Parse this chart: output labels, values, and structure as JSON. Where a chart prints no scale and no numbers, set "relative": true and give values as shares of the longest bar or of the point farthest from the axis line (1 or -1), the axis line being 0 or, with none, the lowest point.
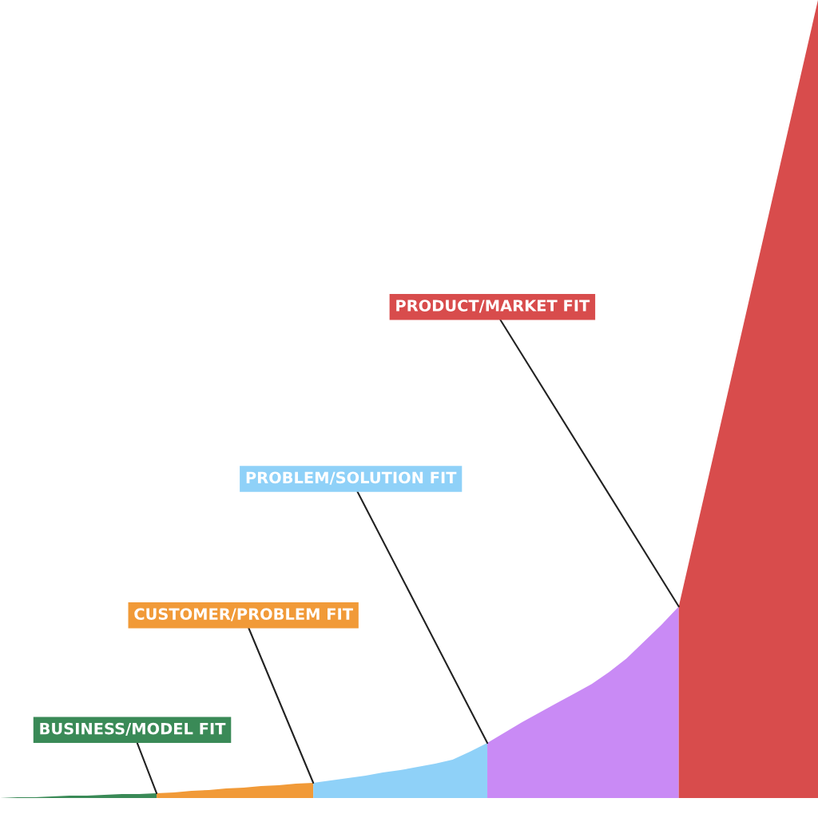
{
  "chart_data": {
    "type": "area",
    "relative": true,
    "categories": [
      null,
      null,
      null,
      null,
      null,
      null,
      null,
      null,
      null,
      null,
      null,
      null,
      null,
      null,
      null,
      null,
      null,
      null,
      null,
      null,
      null,
      null,
      null,
      null,
      null,
      null,
      null,
      null,
      null,
      null,
      null,
      null,
      null,
      null,
      null,
      null,
      null,
      null,
      null,
      null,
      null,
      null,
      null,
      null,
      null,
      null,
      null,
      null
    ],
    "series": [
      {
        "color": "#3a8a57",
        "values": [
          0,
          0.001,
          0.001,
          0.002,
          0.003,
          0.003,
          0.004,
          0.005,
          0.005,
          0.006,
          null,
          null,
          null,
          null,
          null,
          null,
          null,
          null,
          null,
          null,
          null,
          null,
          null,
          null,
          null,
          null,
          null,
          null,
          null,
          null,
          null,
          null,
          null,
          null,
          null,
          null,
          null,
          null,
          null,
          null,
          null,
          null,
          null,
          null,
          null,
          null,
          null,
          null
        ]
      },
      {
        "color": "#f19a38",
        "values": [
          null,
          null,
          null,
          null,
          null,
          null,
          null,
          null,
          null,
          0.006,
          0.007,
          0.009,
          0.01,
          0.012,
          0.013,
          0.015,
          0.016,
          0.018,
          0.019,
          null,
          null,
          null,
          null,
          null,
          null,
          null,
          null,
          null,
          null,
          null,
          null,
          null,
          null,
          null,
          null,
          null,
          null,
          null,
          null,
          null,
          null,
          null,
          null,
          null,
          null,
          null,
          null,
          null
        ]
      },
      {
        "color": "#8fd1f8",
        "values": [
          null,
          null,
          null,
          null,
          null,
          null,
          null,
          null,
          null,
          null,
          null,
          null,
          null,
          null,
          null,
          null,
          null,
          null,
          0.019,
          0.022,
          0.025,
          0.028,
          0.032,
          0.035,
          0.039,
          0.043,
          0.048,
          0.058,
          0.069,
          null,
          null,
          null,
          null,
          null,
          null,
          null,
          null,
          null,
          null,
          null,
          null,
          null,
          null,
          null,
          null,
          null,
          null,
          null
        ]
      },
      {
        "color": "#c98af5",
        "values": [
          null,
          null,
          null,
          null,
          null,
          null,
          null,
          null,
          null,
          null,
          null,
          null,
          null,
          null,
          null,
          null,
          null,
          null,
          null,
          null,
          null,
          null,
          null,
          null,
          null,
          null,
          null,
          null,
          0.069,
          0.082,
          0.095,
          0.107,
          0.119,
          0.131,
          0.143,
          0.158,
          0.175,
          0.196,
          0.217,
          0.24,
          null,
          null,
          null,
          null,
          null,
          null,
          null,
          null
        ]
      },
      {
        "color": "#d84c4c",
        "values": [
          null,
          null,
          null,
          null,
          null,
          null,
          null,
          null,
          null,
          null,
          null,
          null,
          null,
          null,
          null,
          null,
          null,
          null,
          null,
          null,
          null,
          null,
          null,
          null,
          null,
          null,
          null,
          null,
          null,
          null,
          null,
          null,
          null,
          null,
          null,
          null,
          null,
          null,
          null,
          0.24,
          0.335,
          0.43,
          0.525,
          0.62,
          0.715,
          0.81,
          0.905,
          1.0
        ]
      }
    ],
    "annotations": [
      "BUSINESS/MODEL FIT",
      "CUSTOMER/PROBLEM FIT",
      "PROBLEM/SOLUTION FIT",
      "PRODUCT/MARKET FIT"
    ]
  }
}
